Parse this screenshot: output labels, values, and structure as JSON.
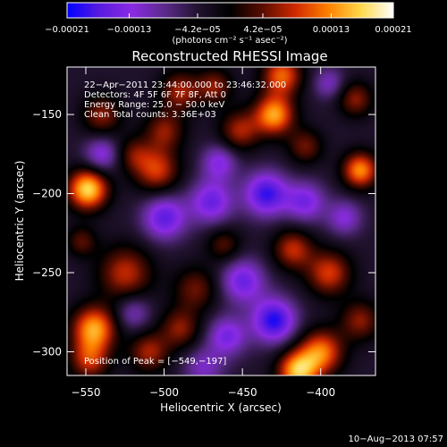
{
  "chart_data": {
    "type": "heatmap",
    "title": "Reconstructed RHESSI Image",
    "xlabel": "Heliocentric X (arcsec)",
    "ylabel": "Heliocentric Y (arcsec)",
    "xlim": [
      -562,
      -365
    ],
    "ylim": [
      -315,
      -120
    ],
    "x_ticks": [
      -550,
      -500,
      -450,
      -400
    ],
    "x_tick_labels": [
      "−550",
      "−500",
      "−450",
      "−400"
    ],
    "y_ticks": [
      -150,
      -200,
      -250,
      -300
    ],
    "y_tick_labels": [
      "−150",
      "−200",
      "−250",
      "−300"
    ],
    "colorbar": {
      "range": [
        -0.00021,
        0.00021
      ],
      "tick_values": [
        -0.00021,
        -0.00013,
        -4.2e-05,
        4.2e-05,
        0.00013,
        0.00021
      ],
      "tick_labels": [
        "−0.00021",
        "−0.00013",
        "−4.2e−05",
        "4.2e−05",
        "0.00013",
        "0.00021"
      ],
      "units_text": "(photons cm⁻² s⁻¹ asec⁻²)",
      "colors": [
        "#0000ff",
        "#5a1be0",
        "#8a2be2",
        "#5a2a8a",
        "#221330",
        "#000000",
        "#5a0d00",
        "#d02a00",
        "#ff8000",
        "#ffd84a",
        "#ffffff"
      ]
    },
    "annotations": [
      "22−Apr−2011 23:44:00.000 to 23:46:32.000",
      "Detectors: 4F 5F 6F 7F 8F, Att 0",
      "Energy Range: 25.0 − 50.0 keV",
      "Clean     Total counts: 3.36E+03"
    ],
    "peak_label": "Position of Peak = [−549,−197]",
    "peak": {
      "x": -549,
      "y": -197
    },
    "blobs": [
      {
        "x": -549,
        "y": -197,
        "s": 9,
        "a": 1.0
      },
      {
        "x": -540,
        "y": -150,
        "s": 9,
        "a": 0.45
      },
      {
        "x": -553,
        "y": -230,
        "s": 7,
        "a": 0.35
      },
      {
        "x": -520,
        "y": -175,
        "s": 8,
        "a": 0.35
      },
      {
        "x": -505,
        "y": -185,
        "s": 10,
        "a": 0.6
      },
      {
        "x": -500,
        "y": -160,
        "s": 9,
        "a": 0.45
      },
      {
        "x": -490,
        "y": -135,
        "s": 9,
        "a": 0.5
      },
      {
        "x": -468,
        "y": -132,
        "s": 8,
        "a": 0.45
      },
      {
        "x": -452,
        "y": -160,
        "s": 9,
        "a": 0.5
      },
      {
        "x": -430,
        "y": -150,
        "s": 9,
        "a": 0.85
      },
      {
        "x": -425,
        "y": -125,
        "s": 9,
        "a": 0.7
      },
      {
        "x": -410,
        "y": -170,
        "s": 8,
        "a": 0.4
      },
      {
        "x": -375,
        "y": -185,
        "s": 8,
        "a": 0.8
      },
      {
        "x": -378,
        "y": -140,
        "s": 8,
        "a": 0.45
      },
      {
        "x": -525,
        "y": -250,
        "s": 12,
        "a": 0.55
      },
      {
        "x": -480,
        "y": -260,
        "s": 10,
        "a": 0.4
      },
      {
        "x": -462,
        "y": -232,
        "s": 8,
        "a": 0.35
      },
      {
        "x": -418,
        "y": -235,
        "s": 9,
        "a": 0.55
      },
      {
        "x": -395,
        "y": -250,
        "s": 10,
        "a": 0.6
      },
      {
        "x": -375,
        "y": -280,
        "s": 9,
        "a": 0.45
      },
      {
        "x": -545,
        "y": -285,
        "s": 10,
        "a": 0.85
      },
      {
        "x": -548,
        "y": -305,
        "s": 9,
        "a": 0.55
      },
      {
        "x": -510,
        "y": -300,
        "s": 9,
        "a": 0.5
      },
      {
        "x": -490,
        "y": -285,
        "s": 9,
        "a": 0.45
      },
      {
        "x": -400,
        "y": -300,
        "s": 10,
        "a": 0.75
      },
      {
        "x": -415,
        "y": -312,
        "s": 9,
        "a": 0.9
      },
      {
        "x": -500,
        "y": -215,
        "s": 10,
        "a": -0.6
      },
      {
        "x": -470,
        "y": -205,
        "s": 10,
        "a": -0.55
      },
      {
        "x": -435,
        "y": -200,
        "s": 10,
        "a": -0.7
      },
      {
        "x": -410,
        "y": -205,
        "s": 9,
        "a": -0.5
      },
      {
        "x": -450,
        "y": -255,
        "s": 10,
        "a": -0.55
      },
      {
        "x": -430,
        "y": -280,
        "s": 10,
        "a": -0.75
      },
      {
        "x": -460,
        "y": -290,
        "s": 9,
        "a": -0.5
      },
      {
        "x": -540,
        "y": -175,
        "s": 8,
        "a": -0.45
      },
      {
        "x": -465,
        "y": -180,
        "s": 8,
        "a": -0.45
      },
      {
        "x": -395,
        "y": -130,
        "s": 7,
        "a": -0.35
      },
      {
        "x": -520,
        "y": -275,
        "s": 8,
        "a": -0.35
      },
      {
        "x": -475,
        "y": -310,
        "s": 9,
        "a": -0.35
      },
      {
        "x": -385,
        "y": -215,
        "s": 8,
        "a": -0.4
      }
    ]
  },
  "footer": {
    "timestamp": "10−Aug−2013 07:57"
  }
}
